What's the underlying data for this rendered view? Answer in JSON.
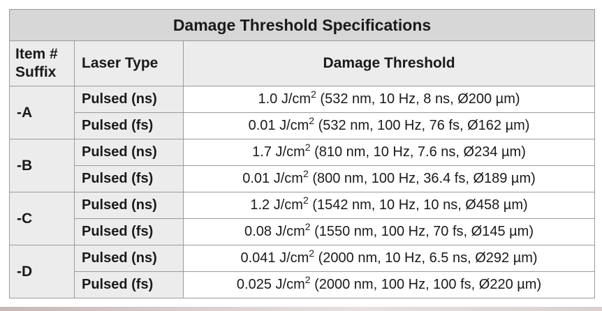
{
  "title": "Damage Threshold Specifications",
  "headers": {
    "suffix_line1": "Item #",
    "suffix_line2": "Suffix",
    "laser_type": "Laser Type",
    "damage_threshold": "Damage Threshold"
  },
  "unit": "J/cm",
  "unit_exp": "2",
  "rows": [
    {
      "suffix": "-A",
      "entries": [
        {
          "laser": "Pulsed (ns)",
          "value": "1.0",
          "detail": " (532 nm, 10 Hz, 8 ns, Ø200 µm)"
        },
        {
          "laser": "Pulsed (fs)",
          "value": "0.01",
          "detail": " (532 nm, 100 Hz, 76 fs, Ø162 µm)"
        }
      ]
    },
    {
      "suffix": "-B",
      "entries": [
        {
          "laser": "Pulsed (ns)",
          "value": "1.7",
          "detail": " (810 nm, 10 Hz, 7.6 ns, Ø234 µm)"
        },
        {
          "laser": "Pulsed (fs)",
          "value": "0.01",
          "detail": " (800 nm, 100 Hz, 36.4 fs, Ø189 µm)"
        }
      ]
    },
    {
      "suffix": "-C",
      "entries": [
        {
          "laser": "Pulsed (ns)",
          "value": "1.2",
          "detail": " (1542 nm, 10 Hz, 10 ns, Ø458 µm)"
        },
        {
          "laser": "Pulsed (fs)",
          "value": "0.08",
          "detail": " (1550 nm, 100 Hz, 70 fs, Ø145 µm)"
        }
      ]
    },
    {
      "suffix": "-D",
      "entries": [
        {
          "laser": "Pulsed (ns)",
          "value": "0.041",
          "detail": " (2000 nm, 10 Hz, 6.5 ns, Ø292 µm)"
        },
        {
          "laser": "Pulsed (fs)",
          "value": "0.025",
          "detail": " (2000 nm, 100 Hz, 100 fs, Ø220 µm)"
        }
      ]
    }
  ]
}
